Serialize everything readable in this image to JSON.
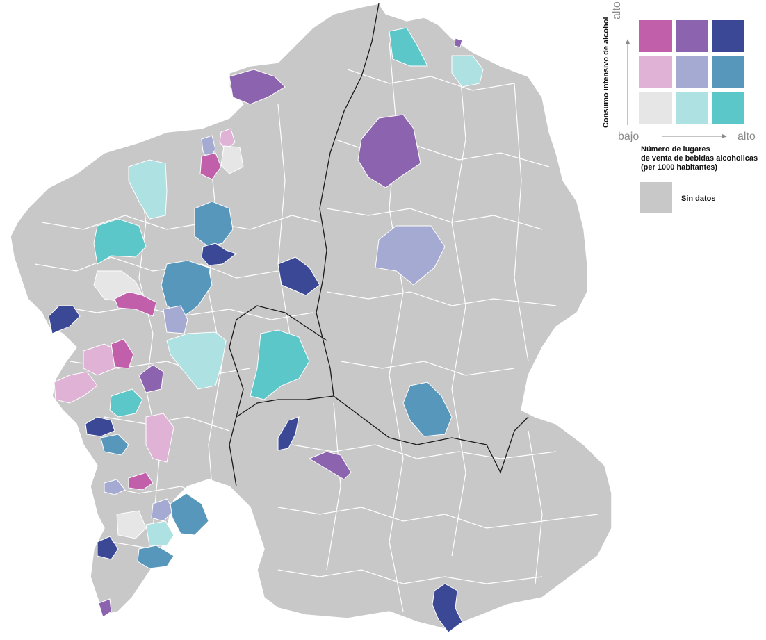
{
  "legend": {
    "y_title": "Consumo intensivo de alcohol",
    "y_high": "alto",
    "x_low": "bajo",
    "x_high": "alto",
    "x_title_1": "Número de lugares",
    "x_title_2": "de venta de bebidas alcoholicas",
    "x_title_3": "(per 1000 habitantes)",
    "nodata_label": "Sin datos",
    "grid": [
      [
        "#c25fab",
        "#8c63ae",
        "#3b4896"
      ],
      [
        "#e0b2d6",
        "#a5aad2",
        "#5797bb"
      ],
      [
        "#e6e6e6",
        "#aee1e1",
        "#5bc7c8"
      ]
    ],
    "nodata_color": "#c8c8c8"
  },
  "colors": {
    "base": "#c8c8c8",
    "border": "#ffffff",
    "province_border": "#1a1a1a"
  }
}
